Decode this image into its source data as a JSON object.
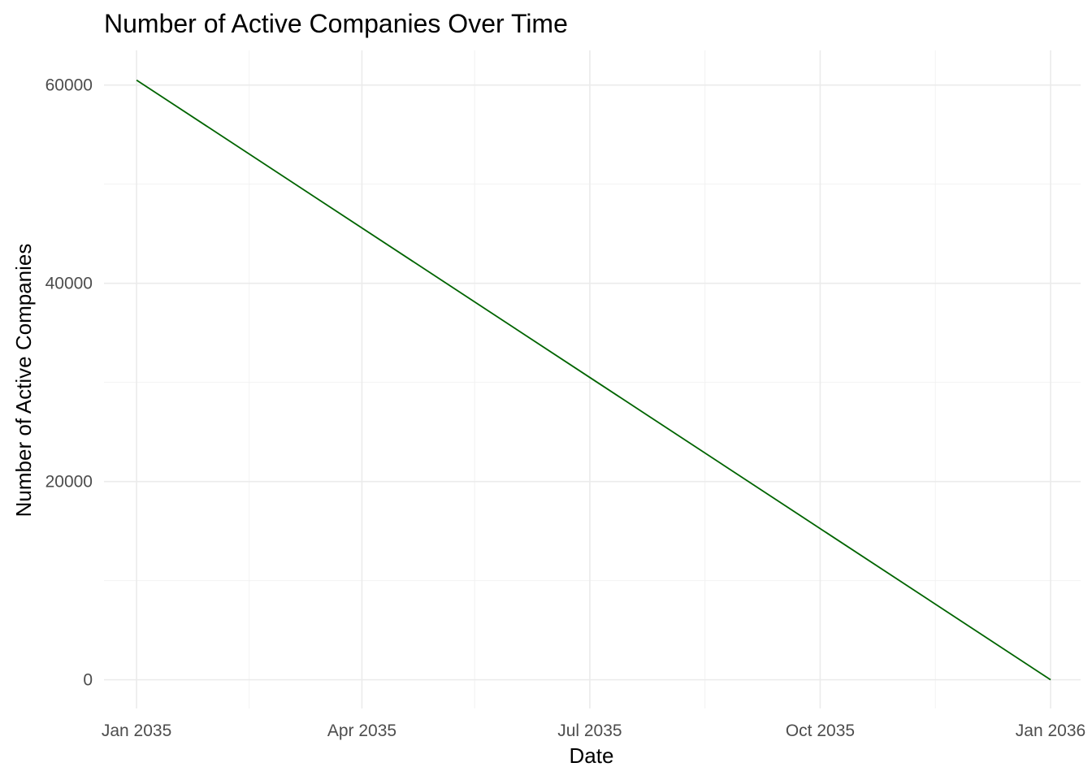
{
  "chart_data": {
    "type": "line",
    "title": "Number of Active Companies Over Time",
    "xlabel": "Date",
    "ylabel": "Number of Active Companies",
    "x_axis_type": "date",
    "xlim": [
      "2034-12-19",
      "2036-01-13"
    ],
    "ylim": [
      -2900,
      63500
    ],
    "x_ticks": [
      {
        "date": "2035-01-01",
        "label": "Jan 2035"
      },
      {
        "date": "2035-04-01",
        "label": "Apr 2035"
      },
      {
        "date": "2035-07-01",
        "label": "Jul 2035"
      },
      {
        "date": "2035-10-01",
        "label": "Oct 2035"
      },
      {
        "date": "2036-01-01",
        "label": "Jan 2036"
      }
    ],
    "x_minor_ticks": [
      "2035-02-15",
      "2035-05-16",
      "2035-08-16",
      "2035-11-16"
    ],
    "y_ticks": [
      {
        "value": 0,
        "label": "0"
      },
      {
        "value": 20000,
        "label": "20000"
      },
      {
        "value": 40000,
        "label": "40000"
      },
      {
        "value": 60000,
        "label": "60000"
      }
    ],
    "y_minor_ticks": [
      10000,
      30000,
      50000
    ],
    "grid": true,
    "legend": "none",
    "series": [
      {
        "color": "#006400",
        "points": [
          {
            "x": "2035-01-01",
            "y": 60500
          },
          {
            "x": "2035-07-01",
            "y": 30500
          },
          {
            "x": "2036-01-01",
            "y": 0
          }
        ]
      }
    ]
  }
}
